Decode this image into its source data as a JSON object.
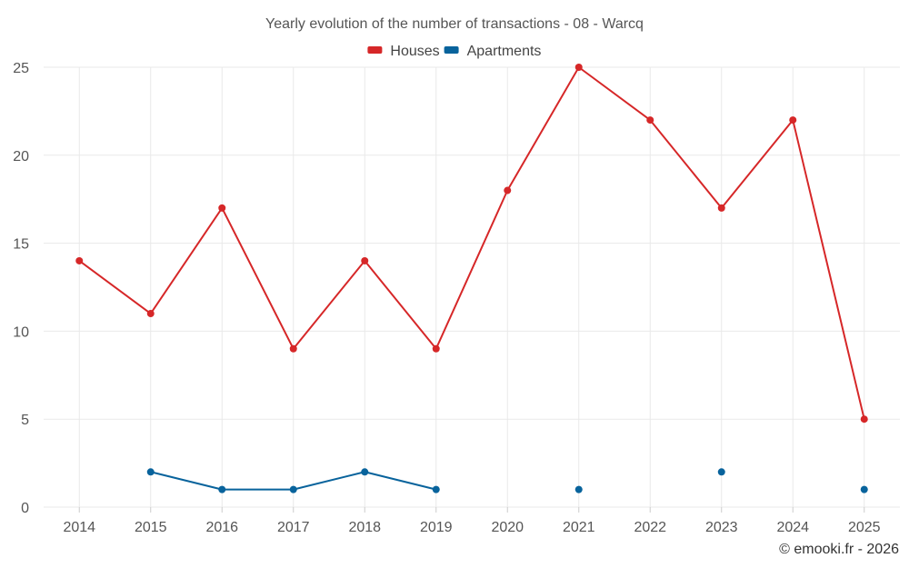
{
  "chart_data": {
    "type": "line",
    "title": "Yearly evolution of the number of transactions - 08 - Warcq",
    "categories": [
      "2014",
      "2015",
      "2016",
      "2017",
      "2018",
      "2019",
      "2020",
      "2021",
      "2022",
      "2023",
      "2024",
      "2025"
    ],
    "series": [
      {
        "name": "Houses",
        "color": "#d62728",
        "values": [
          14,
          11,
          17,
          9,
          14,
          9,
          18,
          25,
          22,
          17,
          22,
          5
        ]
      },
      {
        "name": "Apartments",
        "color": "#08639c",
        "values": [
          null,
          2,
          1,
          1,
          2,
          1,
          null,
          1,
          null,
          2,
          null,
          1
        ]
      }
    ],
    "yticks": [
      0,
      5,
      10,
      15,
      20,
      25
    ],
    "ylim": [
      0,
      25
    ],
    "xlabel": "",
    "ylabel": "",
    "grid": true,
    "legend_position": "top-center"
  },
  "credit": "© emooki.fr - 2026"
}
